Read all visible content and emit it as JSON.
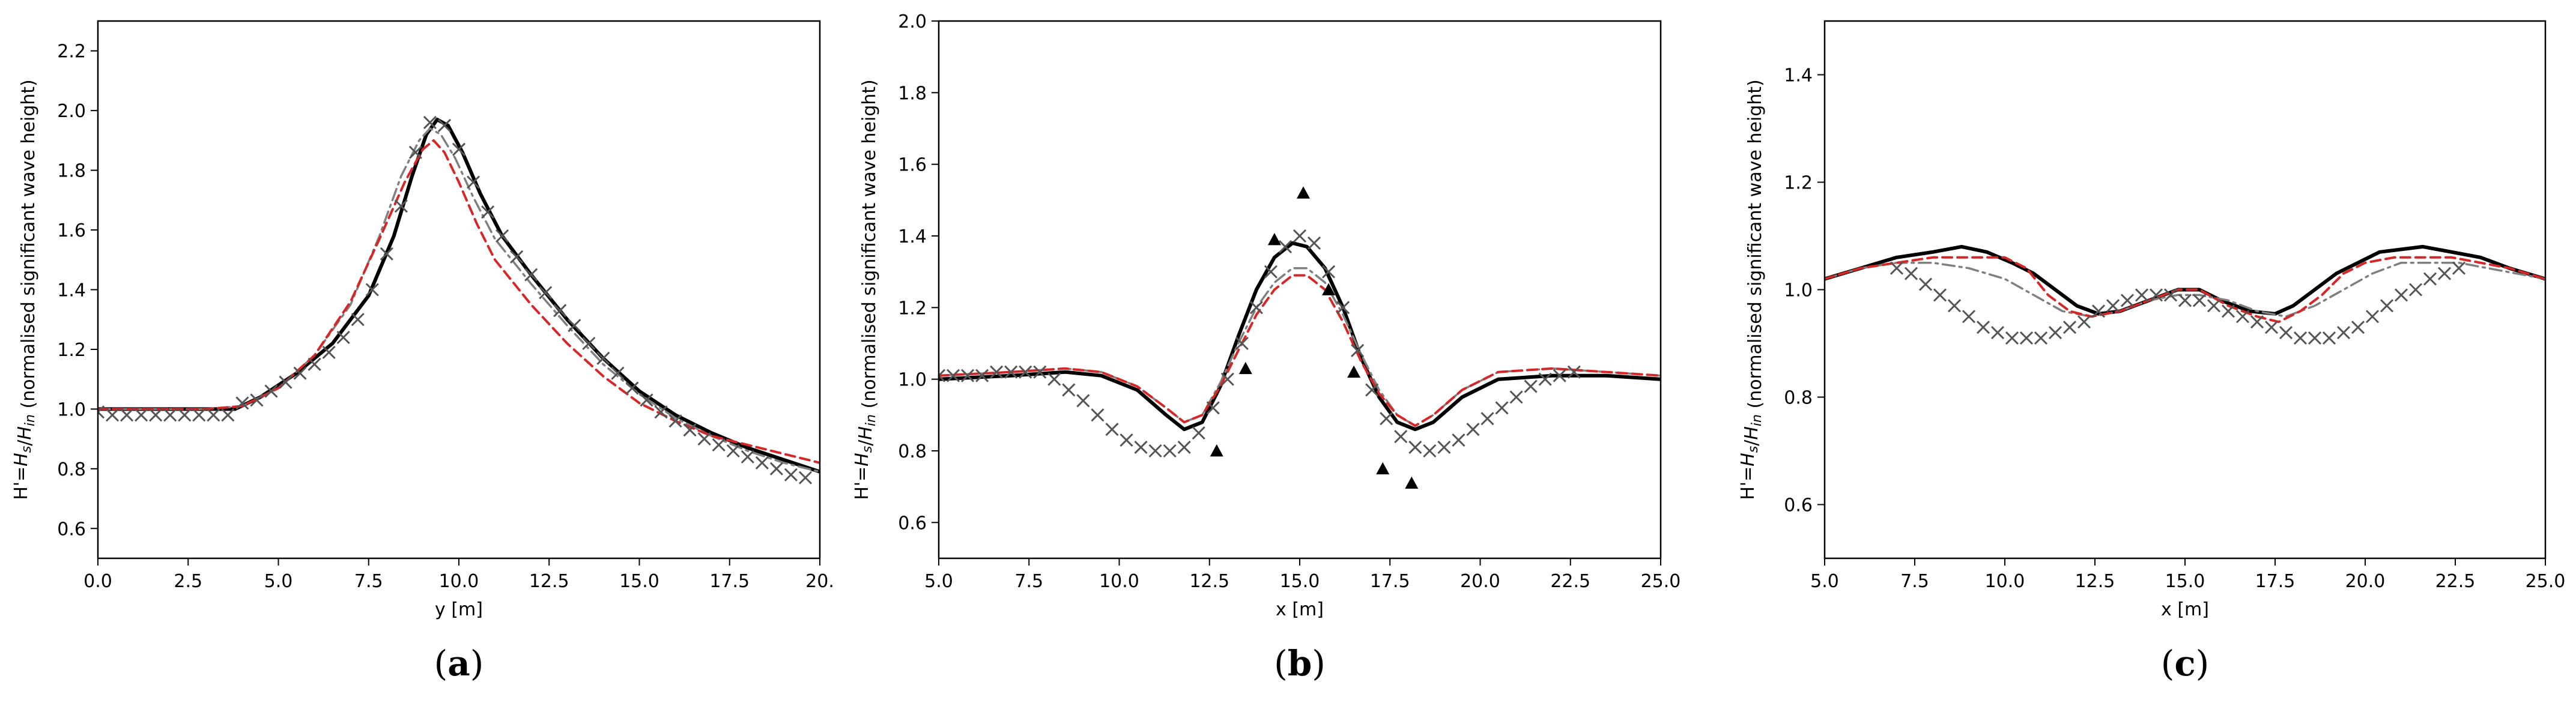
{
  "colors": {
    "black": "#000000",
    "grey_dashdot": "#7f7f7f",
    "grey_cross": "#555555",
    "red_dashed": "#d62728"
  },
  "chart_data": [
    {
      "type": "line",
      "panel_label": {
        "open": "(",
        "letter": "a",
        "close": ")"
      },
      "xlabel": "y [m]",
      "ylabel": "H'=H_s/H_in (normalised significant wave height)",
      "xlim": [
        0,
        20
      ],
      "ylim": [
        0.5,
        2.3
      ],
      "xticks": [
        0,
        2.5,
        5,
        7.5,
        10,
        12.5,
        15,
        17.5,
        20
      ],
      "xtick_labels": [
        "0.0",
        "2.5",
        "5.0",
        "7.5",
        "10.0",
        "12.5",
        "15.0",
        "17.5",
        "20."
      ],
      "yticks": [
        0.6,
        0.8,
        1.0,
        1.2,
        1.4,
        1.6,
        1.8,
        2.0,
        2.2
      ],
      "ytick_labels": [
        "0.6",
        "0.8",
        "1.0",
        "1.2",
        "1.4",
        "1.6",
        "1.8",
        "2.0",
        "2.2"
      ],
      "series": [
        {
          "name": "black solid",
          "style": "solid",
          "x": [
            0,
            3,
            3.8,
            4.5,
            5.5,
            6.5,
            7.5,
            8.2,
            8.7,
            9.1,
            9.4,
            9.7,
            10.1,
            10.6,
            11.2,
            12,
            13,
            14,
            15,
            16,
            17,
            18,
            19,
            20
          ],
          "y": [
            1.0,
            1.0,
            1.0,
            1.04,
            1.12,
            1.22,
            1.38,
            1.58,
            1.78,
            1.92,
            1.97,
            1.95,
            1.86,
            1.72,
            1.58,
            1.45,
            1.3,
            1.17,
            1.06,
            0.98,
            0.92,
            0.87,
            0.83,
            0.79
          ]
        },
        {
          "name": "grey dash-dot",
          "style": "dashdot",
          "x": [
            0,
            3,
            4,
            5,
            6,
            7,
            7.8,
            8.4,
            8.9,
            9.2,
            9.5,
            9.9,
            10.4,
            11,
            12,
            13,
            14,
            15,
            16,
            17,
            18,
            19,
            20
          ],
          "y": [
            1.0,
            1.0,
            1.01,
            1.07,
            1.18,
            1.35,
            1.58,
            1.78,
            1.9,
            1.94,
            1.92,
            1.84,
            1.71,
            1.57,
            1.42,
            1.28,
            1.15,
            1.05,
            0.97,
            0.91,
            0.86,
            0.82,
            0.79
          ]
        },
        {
          "name": "red dashed",
          "style": "dashed",
          "x": [
            0,
            3,
            4,
            5,
            6,
            7,
            7.8,
            8.5,
            9,
            9.3,
            9.6,
            10,
            10.5,
            11,
            12,
            13,
            14,
            15,
            16,
            17,
            18,
            19,
            20
          ],
          "y": [
            1.0,
            1.0,
            1.01,
            1.07,
            1.18,
            1.36,
            1.57,
            1.76,
            1.87,
            1.9,
            1.86,
            1.76,
            1.62,
            1.5,
            1.35,
            1.22,
            1.11,
            1.02,
            0.96,
            0.91,
            0.88,
            0.85,
            0.82
          ]
        },
        {
          "name": "crosses",
          "style": "crosses",
          "x": [
            0,
            0.4,
            0.8,
            1.2,
            1.6,
            2.0,
            2.4,
            2.8,
            3.2,
            3.6,
            4.0,
            4.4,
            4.8,
            5.2,
            5.6,
            6.0,
            6.4,
            6.8,
            7.2,
            7.6,
            8.0,
            8.4,
            8.8,
            9.2,
            9.6,
            10.0,
            10.4,
            10.8,
            11.2,
            11.6,
            12.0,
            12.4,
            12.8,
            13.2,
            13.6,
            14.0,
            14.4,
            14.8,
            15.2,
            15.6,
            16.0,
            16.4,
            16.8,
            17.2,
            17.6,
            18.0,
            18.4,
            18.8,
            19.2,
            19.6
          ],
          "y": [
            0.99,
            0.98,
            0.98,
            0.98,
            0.98,
            0.98,
            0.98,
            0.98,
            0.98,
            0.98,
            1.02,
            1.03,
            1.06,
            1.09,
            1.12,
            1.15,
            1.19,
            1.24,
            1.3,
            1.4,
            1.52,
            1.68,
            1.86,
            1.96,
            1.95,
            1.87,
            1.76,
            1.66,
            1.58,
            1.51,
            1.45,
            1.39,
            1.33,
            1.28,
            1.22,
            1.17,
            1.12,
            1.07,
            1.03,
            0.99,
            0.96,
            0.93,
            0.9,
            0.88,
            0.86,
            0.84,
            0.82,
            0.8,
            0.78,
            0.77
          ]
        }
      ]
    },
    {
      "type": "line",
      "panel_label": {
        "open": "(",
        "letter": "b",
        "close": ")"
      },
      "xlabel": "x [m]",
      "ylabel": "H'=H_s/H_in (normalised significant wave height)",
      "xlim": [
        5,
        25
      ],
      "ylim": [
        0.5,
        2.0
      ],
      "xticks": [
        5,
        7.5,
        10,
        12.5,
        15,
        17.5,
        20,
        22.5,
        25
      ],
      "xtick_labels": [
        "5.0",
        "7.5",
        "10.0",
        "12.5",
        "15.0",
        "17.5",
        "20.0",
        "22.5",
        "25.0"
      ],
      "yticks": [
        0.6,
        0.8,
        1.0,
        1.2,
        1.4,
        1.6,
        1.8,
        2.0
      ],
      "ytick_labels": [
        "0.6",
        "0.8",
        "1.0",
        "1.2",
        "1.4",
        "1.6",
        "1.8",
        "2.0"
      ],
      "series": [
        {
          "name": "black solid",
          "style": "solid",
          "x": [
            5,
            7,
            8.5,
            9.5,
            10.5,
            11.3,
            11.8,
            12.3,
            12.8,
            13.3,
            13.8,
            14.3,
            14.8,
            15.2,
            15.7,
            16.2,
            16.7,
            17.2,
            17.7,
            18.2,
            18.7,
            19.5,
            20.5,
            22,
            23.5,
            25
          ],
          "y": [
            1.0,
            1.01,
            1.02,
            1.01,
            0.97,
            0.9,
            0.86,
            0.88,
            0.98,
            1.12,
            1.25,
            1.34,
            1.38,
            1.37,
            1.31,
            1.2,
            1.06,
            0.95,
            0.88,
            0.86,
            0.88,
            0.95,
            1.0,
            1.01,
            1.01,
            1.0
          ]
        },
        {
          "name": "grey dash-dot",
          "style": "dashdot",
          "x": [
            5,
            7,
            8.5,
            9.5,
            10.5,
            11.3,
            11.8,
            12.3,
            12.8,
            13.3,
            13.8,
            14.3,
            14.8,
            15.2,
            15.7,
            16.2,
            16.7,
            17.2,
            17.7,
            18.2,
            18.7,
            19.5,
            20.5,
            22,
            23.5,
            25
          ],
          "y": [
            1.01,
            1.02,
            1.03,
            1.02,
            0.98,
            0.92,
            0.88,
            0.9,
            0.99,
            1.1,
            1.2,
            1.27,
            1.31,
            1.31,
            1.27,
            1.18,
            1.07,
            0.97,
            0.9,
            0.87,
            0.9,
            0.97,
            1.02,
            1.03,
            1.02,
            1.01
          ]
        },
        {
          "name": "red dashed",
          "style": "dashed",
          "x": [
            5,
            7,
            8.5,
            9.5,
            10.5,
            11.3,
            11.8,
            12.3,
            12.8,
            13.3,
            13.8,
            14.3,
            14.8,
            15.2,
            15.7,
            16.2,
            16.7,
            17.2,
            17.7,
            18.2,
            18.7,
            19.5,
            20.5,
            22,
            23.5,
            25
          ],
          "y": [
            1.01,
            1.02,
            1.03,
            1.02,
            0.98,
            0.92,
            0.88,
            0.9,
            0.98,
            1.08,
            1.18,
            1.25,
            1.29,
            1.29,
            1.25,
            1.16,
            1.05,
            0.96,
            0.9,
            0.87,
            0.9,
            0.97,
            1.02,
            1.03,
            1.02,
            1.01
          ]
        },
        {
          "name": "crosses",
          "style": "crosses",
          "x": [
            5,
            5.4,
            5.8,
            6.2,
            6.6,
            7.0,
            7.4,
            7.8,
            8.2,
            8.6,
            9.0,
            9.4,
            9.8,
            10.2,
            10.6,
            11.0,
            11.4,
            11.8,
            12.2,
            12.6,
            13.0,
            13.4,
            13.8,
            14.2,
            14.6,
            15.0,
            15.4,
            15.8,
            16.2,
            16.6,
            17.0,
            17.4,
            17.8,
            18.2,
            18.6,
            19.0,
            19.4,
            19.8,
            20.2,
            20.6,
            21.0,
            21.4,
            21.8,
            22.2,
            22.6
          ],
          "y": [
            1.01,
            1.01,
            1.01,
            1.01,
            1.02,
            1.02,
            1.02,
            1.02,
            1.0,
            0.97,
            0.94,
            0.9,
            0.86,
            0.83,
            0.81,
            0.8,
            0.8,
            0.81,
            0.85,
            0.92,
            1.0,
            1.1,
            1.2,
            1.3,
            1.37,
            1.4,
            1.38,
            1.3,
            1.2,
            1.08,
            0.97,
            0.89,
            0.84,
            0.81,
            0.8,
            0.81,
            0.83,
            0.86,
            0.89,
            0.92,
            0.95,
            0.98,
            1.0,
            1.01,
            1.02
          ]
        },
        {
          "name": "measured (triangles)",
          "style": "triangles",
          "x": [
            12.7,
            13.5,
            14.3,
            15.1,
            15.8,
            16.5,
            17.3,
            18.1
          ],
          "y": [
            0.8,
            1.03,
            1.39,
            1.52,
            1.25,
            1.02,
            0.75,
            0.71
          ]
        }
      ]
    },
    {
      "type": "line",
      "panel_label": {
        "open": "(",
        "letter": "c",
        "close": ")"
      },
      "xlabel": "x [m]",
      "ylabel": "H'=H_s/H_in (normalised significant wave height)",
      "xlim": [
        5,
        25
      ],
      "ylim": [
        0.5,
        1.5
      ],
      "xticks": [
        5,
        7.5,
        10,
        12.5,
        15,
        17.5,
        20,
        22.5,
        25
      ],
      "xtick_labels": [
        "5.0",
        "7.5",
        "10.0",
        "12.5",
        "15.0",
        "17.5",
        "20.0",
        "22.5",
        "25.0"
      ],
      "yticks": [
        0.6,
        0.8,
        1.0,
        1.2,
        1.4
      ],
      "ytick_labels": [
        "0.6",
        "0.8",
        "1.0",
        "1.2",
        "1.4"
      ],
      "series": [
        {
          "name": "black solid",
          "style": "solid",
          "x": [
            5,
            6,
            7,
            8,
            8.8,
            9.5,
            10.2,
            10.8,
            11.4,
            12,
            12.6,
            13.2,
            14,
            14.8,
            15.4,
            16,
            16.8,
            17.5,
            18,
            18.6,
            19.2,
            19.8,
            20.4,
            21,
            21.6,
            22.4,
            23.2,
            24,
            25
          ],
          "y": [
            1.02,
            1.04,
            1.06,
            1.07,
            1.08,
            1.07,
            1.05,
            1.03,
            1.0,
            0.97,
            0.955,
            0.96,
            0.98,
            1.0,
            1.0,
            0.98,
            0.96,
            0.955,
            0.97,
            1.0,
            1.03,
            1.05,
            1.07,
            1.075,
            1.08,
            1.07,
            1.06,
            1.04,
            1.02
          ]
        },
        {
          "name": "grey dash-dot",
          "style": "dashdot",
          "x": [
            5,
            6,
            7,
            8,
            9,
            10,
            10.8,
            11.6,
            12.4,
            13.2,
            14,
            14.8,
            15.4,
            16.2,
            17,
            17.8,
            18.6,
            19.4,
            20.2,
            21,
            21.8,
            22.6,
            23.4,
            24.2,
            25
          ],
          "y": [
            1.02,
            1.04,
            1.05,
            1.05,
            1.04,
            1.02,
            0.99,
            0.96,
            0.95,
            0.96,
            0.98,
            0.99,
            0.99,
            0.98,
            0.96,
            0.95,
            0.97,
            1.0,
            1.03,
            1.05,
            1.05,
            1.05,
            1.04,
            1.03,
            1.02
          ]
        },
        {
          "name": "red dashed",
          "style": "dashed",
          "x": [
            5,
            6,
            7,
            8,
            9,
            10,
            10.6,
            11.2,
            11.8,
            12.4,
            13.2,
            14,
            14.8,
            15.4,
            16.2,
            17,
            17.6,
            18.2,
            18.8,
            19.4,
            20,
            20.8,
            21.6,
            22.4,
            23.2,
            24,
            25
          ],
          "y": [
            1.02,
            1.04,
            1.05,
            1.06,
            1.06,
            1.06,
            1.04,
            0.99,
            0.96,
            0.95,
            0.96,
            0.98,
            1.0,
            1.0,
            0.97,
            0.95,
            0.94,
            0.96,
            0.99,
            1.03,
            1.05,
            1.06,
            1.06,
            1.06,
            1.05,
            1.04,
            1.02
          ]
        },
        {
          "name": "crosses",
          "style": "crosses",
          "x": [
            7.0,
            7.4,
            7.8,
            8.2,
            8.6,
            9.0,
            9.4,
            9.8,
            10.2,
            10.6,
            11.0,
            11.4,
            11.8,
            12.2,
            12.6,
            13.0,
            13.4,
            13.8,
            14.2,
            14.6,
            15.0,
            15.4,
            15.8,
            16.2,
            16.6,
            17.0,
            17.4,
            17.8,
            18.2,
            18.6,
            19.0,
            19.4,
            19.8,
            20.2,
            20.6,
            21.0,
            21.4,
            21.8,
            22.2,
            22.6
          ],
          "y": [
            1.04,
            1.03,
            1.01,
            0.99,
            0.97,
            0.95,
            0.93,
            0.92,
            0.91,
            0.91,
            0.91,
            0.92,
            0.93,
            0.94,
            0.96,
            0.97,
            0.98,
            0.99,
            0.99,
            0.99,
            0.98,
            0.98,
            0.97,
            0.96,
            0.95,
            0.94,
            0.93,
            0.92,
            0.91,
            0.91,
            0.91,
            0.92,
            0.93,
            0.95,
            0.97,
            0.99,
            1.0,
            1.02,
            1.03,
            1.04
          ]
        }
      ]
    }
  ]
}
